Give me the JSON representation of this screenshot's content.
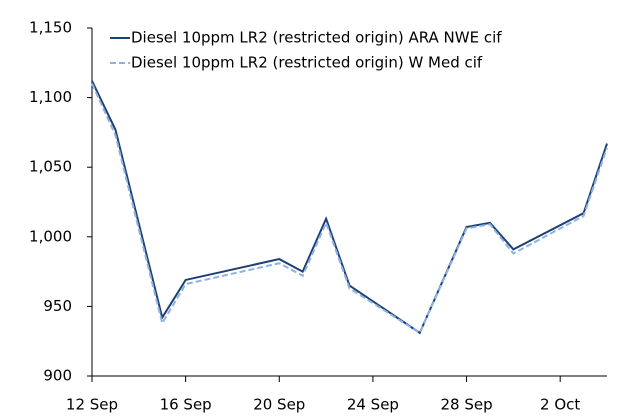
{
  "chart_data": {
    "type": "line",
    "x": [
      "12 Sep",
      "13 Sep",
      "15 Sep",
      "16 Sep",
      "20 Sep",
      "21 Sep",
      "22 Sep",
      "23 Sep",
      "26 Sep",
      "28 Sep",
      "29 Sep",
      "30 Sep",
      "3 Oct",
      "4 Oct"
    ],
    "series": [
      {
        "name": "Diesel 10ppm LR2 (restricted origin) ARA NWE cif",
        "color": "#1f3f73",
        "dash": false,
        "values": [
          1112,
          1077,
          942,
          969,
          984,
          975,
          1013,
          965,
          931,
          1007,
          1010,
          991,
          1017,
          1067
        ]
      },
      {
        "name": "Diesel 10ppm LR2 (restricted origin) W Med cif",
        "color": "#8db3e2",
        "dash": true,
        "values": [
          1110,
          1073,
          938,
          966,
          981,
          972,
          1010,
          963,
          931,
          1006,
          1009,
          988,
          1015,
          1064
        ]
      }
    ],
    "xlim": [
      "12 Sep",
      "4 Oct"
    ],
    "xticks": [
      "12 Sep",
      "16 Sep",
      "20 Sep",
      "24 Sep",
      "28 Sep",
      "2 Oct"
    ],
    "ylim": [
      900,
      1150
    ],
    "yticks": [
      {
        "value": 900,
        "label": "900"
      },
      {
        "value": 950,
        "label": "950"
      },
      {
        "value": 1000,
        "label": "1,000"
      },
      {
        "value": 1050,
        "label": "1,050"
      },
      {
        "value": 1100,
        "label": "1,100"
      },
      {
        "value": 1150,
        "label": "1,150"
      }
    ],
    "grid": false,
    "legend": "top-right"
  }
}
